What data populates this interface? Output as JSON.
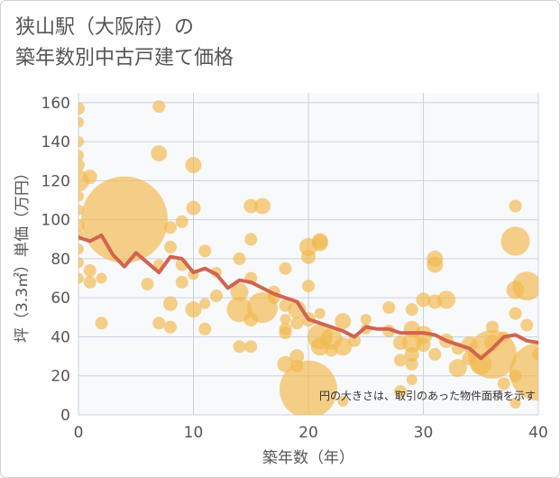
{
  "chart_data": {
    "type": "scatter",
    "title_lines": [
      "狭山駅（大阪府）の",
      "築年数別中古戸建て価格"
    ],
    "xlabel": "築年数（年）",
    "ylabel": "坪（3.3㎡）単価（万円）",
    "xlim": [
      0,
      40
    ],
    "ylim": [
      0,
      165
    ],
    "x_ticks": [
      0,
      10,
      20,
      30,
      40
    ],
    "y_ticks": [
      0,
      20,
      40,
      60,
      80,
      100,
      120,
      140,
      160
    ],
    "grid": true,
    "note": "円の大きさは、取引のあった物件面積を示す",
    "colors": {
      "bubble": "#f2b950",
      "line": "#d2634f",
      "grid": "#c9d3dd",
      "plot_bg": "#f8f9fb"
    },
    "bubbles": [
      [
        0,
        157,
        7
      ],
      [
        0,
        150,
        6
      ],
      [
        0,
        140,
        6
      ],
      [
        0,
        133,
        6
      ],
      [
        0,
        128,
        7
      ],
      [
        0,
        120,
        12
      ],
      [
        0,
        112,
        6
      ],
      [
        0,
        105,
        6
      ],
      [
        0,
        97,
        7
      ],
      [
        0,
        92,
        6
      ],
      [
        0,
        85,
        6
      ],
      [
        0,
        78,
        6
      ],
      [
        0,
        70,
        6
      ],
      [
        1,
        122,
        8
      ],
      [
        1,
        74,
        7
      ],
      [
        1,
        68,
        7
      ],
      [
        2,
        47,
        7
      ],
      [
        2,
        70,
        6
      ],
      [
        4,
        100,
        48
      ],
      [
        6,
        67,
        7
      ],
      [
        7,
        158,
        7
      ],
      [
        7,
        134,
        9
      ],
      [
        7,
        47,
        7
      ],
      [
        7,
        77,
        6
      ],
      [
        8,
        96,
        7
      ],
      [
        8,
        86,
        7
      ],
      [
        8,
        57,
        8
      ],
      [
        8,
        45,
        7
      ],
      [
        9,
        99,
        7
      ],
      [
        9,
        77,
        7
      ],
      [
        9,
        68,
        7
      ],
      [
        10,
        128,
        9
      ],
      [
        10,
        106,
        8
      ],
      [
        10,
        54,
        9
      ],
      [
        10,
        72,
        6
      ],
      [
        11,
        84,
        7
      ],
      [
        11,
        44,
        7
      ],
      [
        11,
        57,
        6
      ],
      [
        12,
        61,
        7
      ],
      [
        12,
        73,
        6
      ],
      [
        14,
        80,
        7
      ],
      [
        14,
        63,
        10
      ],
      [
        14,
        54,
        14
      ],
      [
        14,
        35,
        7
      ],
      [
        15,
        107,
        8
      ],
      [
        15,
        90,
        7
      ],
      [
        15,
        70,
        7
      ],
      [
        15,
        49,
        8
      ],
      [
        15,
        35,
        7
      ],
      [
        16,
        107,
        9
      ],
      [
        16,
        55,
        17
      ],
      [
        17,
        63,
        7
      ],
      [
        17,
        60,
        7
      ],
      [
        18,
        75,
        7
      ],
      [
        18,
        56,
        7
      ],
      [
        18,
        49,
        6
      ],
      [
        18,
        44,
        7
      ],
      [
        18,
        42,
        7
      ],
      [
        18,
        26,
        9
      ],
      [
        19,
        54,
        10
      ],
      [
        19,
        47,
        7
      ],
      [
        19,
        30,
        8
      ],
      [
        19,
        25,
        7
      ],
      [
        20,
        86,
        10
      ],
      [
        20,
        81,
        8
      ],
      [
        20,
        66,
        7
      ],
      [
        20,
        49,
        8
      ],
      [
        20,
        13,
        32
      ],
      [
        21,
        89,
        9
      ],
      [
        21,
        88,
        9
      ],
      [
        21,
        52,
        6
      ],
      [
        21,
        40,
        14
      ],
      [
        21,
        35,
        10
      ],
      [
        22,
        39,
        12
      ],
      [
        22,
        33,
        7
      ],
      [
        23,
        48,
        9
      ],
      [
        23,
        35,
        10
      ],
      [
        23,
        7,
        6
      ],
      [
        24,
        38,
        7
      ],
      [
        25,
        49,
        6
      ],
      [
        25,
        44,
        6
      ],
      [
        27,
        55,
        7
      ],
      [
        27,
        43,
        7
      ],
      [
        28,
        37,
        8
      ],
      [
        28,
        28,
        7
      ],
      [
        28,
        12,
        7
      ],
      [
        29,
        54,
        7
      ],
      [
        29,
        44,
        9
      ],
      [
        29,
        37,
        11
      ],
      [
        29,
        31,
        8
      ],
      [
        29,
        26,
        7
      ],
      [
        29,
        18,
        6
      ],
      [
        30,
        59,
        8
      ],
      [
        30,
        41,
        10
      ],
      [
        30,
        36,
        8
      ],
      [
        31,
        80,
        9
      ],
      [
        31,
        77,
        9
      ],
      [
        31,
        58,
        8
      ],
      [
        31,
        31,
        7
      ],
      [
        32,
        59,
        10
      ],
      [
        32,
        38,
        8
      ],
      [
        33,
        34,
        7
      ],
      [
        33,
        24,
        10
      ],
      [
        34,
        36,
        9
      ],
      [
        34,
        29,
        8
      ],
      [
        35,
        26,
        12
      ],
      [
        36,
        31,
        27
      ],
      [
        36,
        45,
        7
      ],
      [
        36,
        37,
        9
      ],
      [
        37,
        16,
        7
      ],
      [
        37,
        40,
        6
      ],
      [
        38,
        89,
        16
      ],
      [
        38,
        107,
        7
      ],
      [
        38,
        64,
        10
      ],
      [
        38,
        52,
        7
      ],
      [
        38,
        20,
        7
      ],
      [
        38,
        6,
        6
      ],
      [
        39,
        66,
        16
      ],
      [
        39,
        46,
        7
      ],
      [
        40,
        31,
        7
      ],
      [
        40,
        22,
        32
      ]
    ],
    "trend": {
      "x": [
        0,
        1,
        2,
        3,
        4,
        5,
        6,
        7,
        8,
        9,
        10,
        11,
        12,
        13,
        14,
        15,
        16,
        17,
        18,
        19,
        20,
        21,
        22,
        23,
        24,
        25,
        26,
        27,
        28,
        29,
        30,
        31,
        32,
        33,
        34,
        35,
        36,
        37,
        38,
        39,
        40
      ],
      "y": [
        91,
        89,
        92,
        82,
        76,
        83,
        78,
        73,
        81,
        80,
        73,
        75,
        72,
        65,
        69,
        68,
        65,
        62,
        60,
        58,
        49,
        47,
        45,
        43,
        40,
        45,
        44,
        44,
        42,
        42,
        42,
        41,
        38,
        36,
        34,
        29,
        34,
        40,
        41,
        38,
        37
      ]
    }
  }
}
